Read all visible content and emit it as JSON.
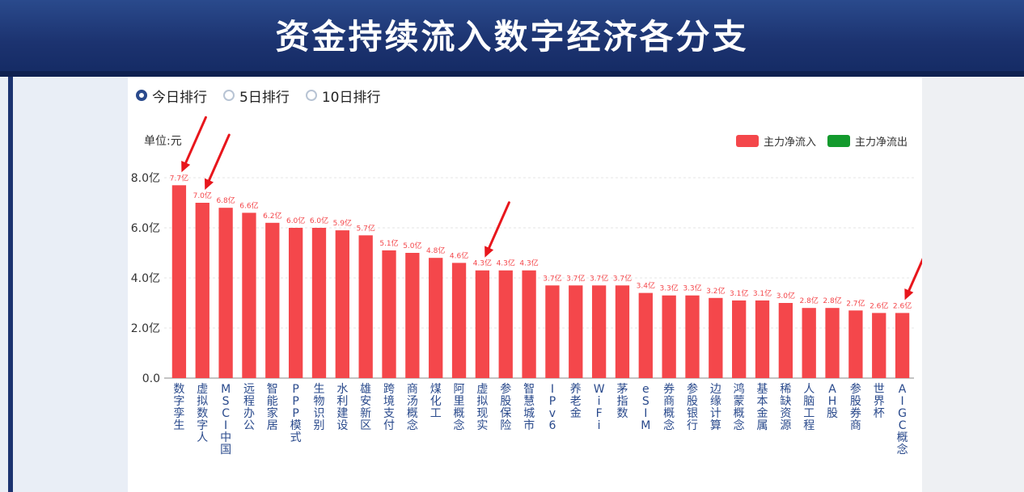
{
  "title": "资金持续流入数字经济各分支",
  "rank_options": [
    {
      "label": "今日排行",
      "selected": true
    },
    {
      "label": "5日排行",
      "selected": false
    },
    {
      "label": "10日排行",
      "selected": false
    }
  ],
  "unit_label": "单位:元",
  "colors": {
    "inflow": "#f4474b",
    "outflow": "#139a2d",
    "banner": "#1c3370"
  },
  "chart_data": {
    "type": "bar",
    "ylim": [
      0,
      8
    ],
    "yticks": [
      "0.0",
      "2.0亿",
      "4.0亿",
      "6.0亿",
      "8.0亿"
    ],
    "legend": [
      "主力净流入",
      "主力净流出"
    ],
    "legend_position": "top-right",
    "grid": true,
    "categories": [
      "数字孪生",
      "虚拟数字人",
      "MSCI中国",
      "远程办公",
      "智能家居",
      "PPP模式",
      "生物识别",
      "水利建设",
      "雄安新区",
      "跨境支付",
      "商汤概念",
      "煤化工",
      "阿里概念",
      "虚拟现实",
      "参股保险",
      "智慧城市",
      "IPv6",
      "养老金",
      "WiFi",
      "茅指数",
      "eSIM",
      "券商概念",
      "参股银行",
      "边缘计算",
      "鸿蒙概念",
      "基本金属",
      "稀缺资源",
      "人脑工程",
      "AH股",
      "参股券商",
      "世界杯",
      "AIGC概念"
    ],
    "values": [
      7.7,
      7.0,
      6.8,
      6.6,
      6.2,
      6.0,
      6.0,
      5.9,
      5.7,
      5.1,
      5.0,
      4.8,
      4.6,
      4.3,
      4.3,
      4.3,
      3.7,
      3.7,
      3.7,
      3.7,
      3.4,
      3.3,
      3.3,
      3.2,
      3.1,
      3.1,
      3.0,
      2.8,
      2.8,
      2.7,
      2.6,
      2.6
    ],
    "value_labels": [
      "7.7亿",
      "7.0亿",
      "6.8亿",
      "6.6亿",
      "6.2亿",
      "6.0亿",
      "6.0亿",
      "5.9亿",
      "5.7亿",
      "5.1亿",
      "5.0亿",
      "4.8亿",
      "4.6亿",
      "4.3亿",
      "4.3亿",
      "4.3亿",
      "3.7亿",
      "3.7亿",
      "3.7亿",
      "3.7亿",
      "3.4亿",
      "3.3亿",
      "3.3亿",
      "3.2亿",
      "3.1亿",
      "3.1亿",
      "3.0亿",
      "2.8亿",
      "2.8亿",
      "2.7亿",
      "2.6亿",
      "2.6亿"
    ],
    "highlight_arrows_on": [
      0,
      1,
      13,
      31
    ]
  }
}
